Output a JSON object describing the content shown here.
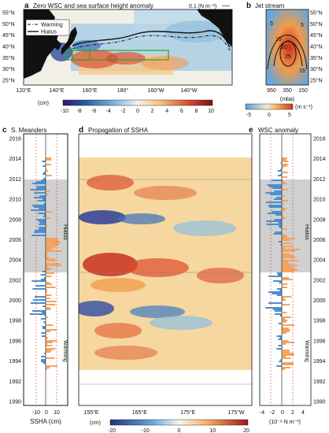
{
  "panel_a": {
    "letter": "a",
    "title": "Zero WSC and sea surface height anomaly",
    "vector_scale": "0.1 (N m⁻²)",
    "legend": [
      {
        "label": "Warming",
        "style": "dash-dot"
      },
      {
        "label": "Hiatus",
        "style": "solid"
      }
    ],
    "lat_ticks": [
      "55°N",
      "50°N",
      "45°N",
      "40°N",
      "35°N",
      "30°N",
      "25°N"
    ],
    "lon_ticks": [
      "120°E",
      "140°E",
      "160°E",
      "180°",
      "160°W",
      "140°W"
    ],
    "colorbar": {
      "unit": "(cm)",
      "ticks": [
        "-10",
        "-8",
        "-6",
        "-4",
        "-2",
        "0",
        "2",
        "4",
        "6",
        "8",
        "10"
      ]
    }
  },
  "panel_b": {
    "letter": "b",
    "title": "Jet stream",
    "x_ticks": [
      "950",
      "350",
      "150"
    ],
    "x_unit": "(mba)",
    "contour_labels": [
      "5",
      "5",
      "15",
      "15",
      "20",
      "25"
    ],
    "colorbar": {
      "unit": "(m s⁻¹)",
      "ticks": [
        "-5",
        "0",
        "5"
      ]
    }
  },
  "panel_c": {
    "letter": "c",
    "title": "S. Meanders",
    "xlabel": "SSHA (cm)",
    "x_ticks": [
      "-10",
      "0",
      "10"
    ],
    "side_labels": {
      "hiatus": "Hiatus",
      "warming": "Warming"
    }
  },
  "panel_d": {
    "letter": "d",
    "title": "Propagation of SSHA",
    "x_ticks": [
      "155°E",
      "165°E",
      "175°E",
      "175°W"
    ],
    "colorbar": {
      "unit": "(cm)",
      "ticks": [
        "-20",
        "-10",
        "0",
        "10",
        "20"
      ]
    }
  },
  "panel_e": {
    "letter": "e",
    "title": "WSC anomaly",
    "xlabel": "(10⁻⁸ N m⁻³)",
    "x_ticks": [
      "-4",
      "-2",
      "0",
      "2",
      "4"
    ],
    "side_labels": {
      "hiatus": "Hiatus",
      "warming": "Warming"
    }
  },
  "year_ticks": [
    "2016",
    "2014",
    "2012",
    "2010",
    "2008",
    "2006",
    "2004",
    "2002",
    "2000",
    "1998",
    "1996",
    "1994",
    "1992",
    "1990"
  ],
  "colors": {
    "blue": "#2166ac",
    "orange": "#f4a460",
    "red": "#b2182b",
    "green": "#22aa22",
    "hiatus_shade": "#d0d0d0"
  }
}
